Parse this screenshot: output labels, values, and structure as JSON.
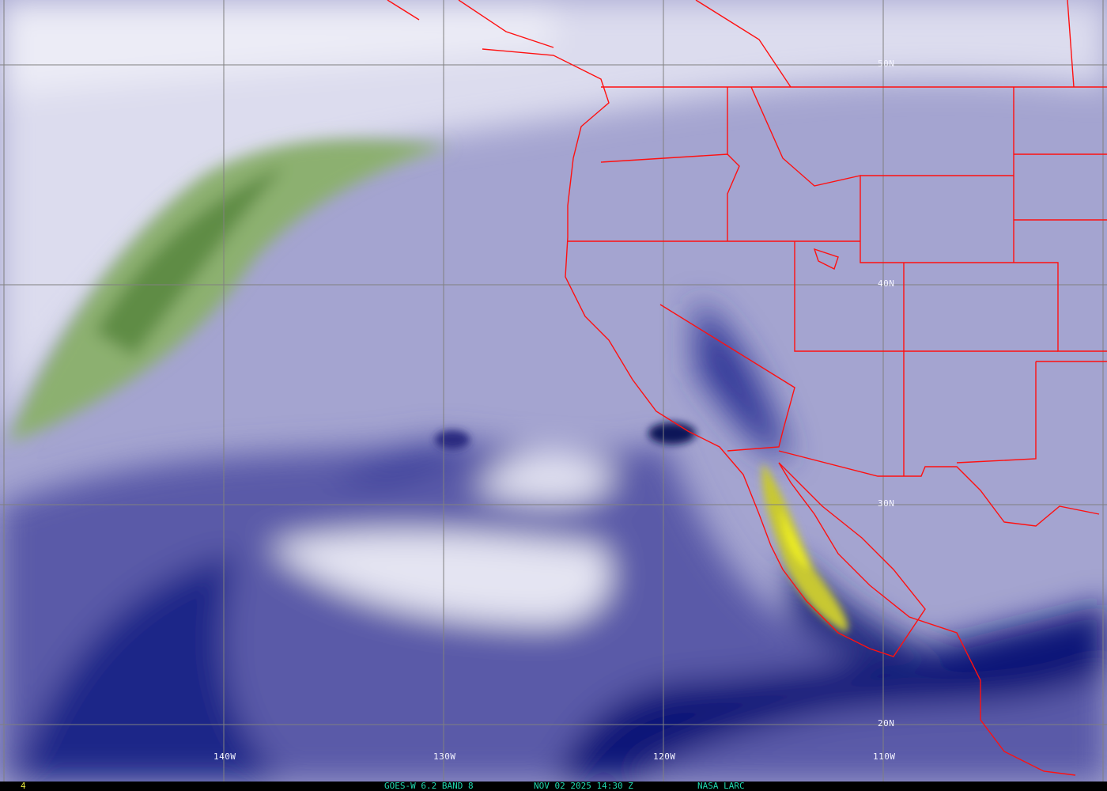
{
  "image": {
    "satellite": "GOES-W 6.2 BAND 8",
    "datetime": "NOV 02 2025 14:30 Z",
    "source": "NASA LARC",
    "frame_number": "4"
  },
  "latitude_labels": [
    "50N",
    "40N",
    "30N",
    "20N"
  ],
  "longitude_labels": [
    "140W",
    "130W",
    "120W",
    "110W"
  ],
  "colors": {
    "background_mid": "#9c9ccc",
    "moist_light": "#e8e8f4",
    "dry_dark": "#101870",
    "very_dry_yellow": "#e0e020",
    "cold_green": "#6c9a4c",
    "borders": "#ff1010",
    "grid": "#808080",
    "caption_text": "#20d8b0"
  }
}
